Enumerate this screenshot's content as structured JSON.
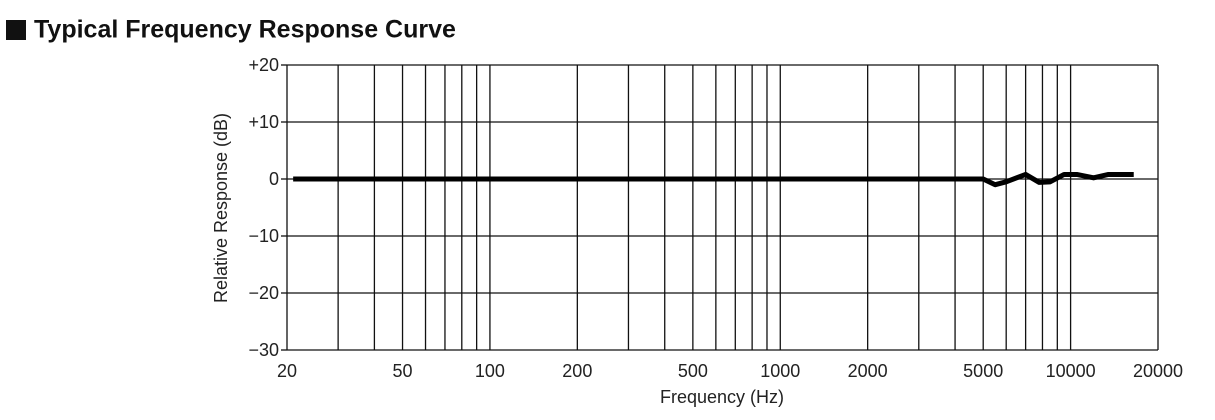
{
  "chart_data": {
    "type": "line",
    "title": "Typical Frequency Response Curve",
    "xlabel": "Frequency (Hz)",
    "ylabel": "Relative Response (dB)",
    "xscale": "log",
    "xlim": [
      20,
      20000
    ],
    "ylim": [
      -30,
      20
    ],
    "xticks": [
      20,
      50,
      100,
      200,
      500,
      1000,
      2000,
      5000,
      10000,
      20000
    ],
    "xgrid": [
      20,
      30,
      40,
      50,
      60,
      70,
      80,
      90,
      100,
      200,
      300,
      400,
      500,
      600,
      700,
      800,
      900,
      1000,
      2000,
      3000,
      4000,
      5000,
      6000,
      7000,
      8000,
      9000,
      10000,
      20000
    ],
    "yticks": [
      {
        "value": 20,
        "label": "+20"
      },
      {
        "value": 10,
        "label": "+10"
      },
      0,
      {
        "value": -10,
        "label": "−10"
      },
      {
        "value": -20,
        "label": "−20"
      },
      {
        "value": -30,
        "label": "−30"
      }
    ],
    "grid": true,
    "color": "#000000",
    "x": [
      21,
      50,
      100,
      500,
      1000,
      2000,
      5000,
      5500,
      6000,
      7000,
      7800,
      8500,
      9500,
      10500,
      12000,
      13500,
      16500
    ],
    "values": [
      0,
      0,
      0,
      0,
      0,
      0,
      0,
      -1,
      -0.5,
      0.8,
      -0.6,
      -0.5,
      0.8,
      0.8,
      0.2,
      0.8,
      0.8
    ]
  }
}
